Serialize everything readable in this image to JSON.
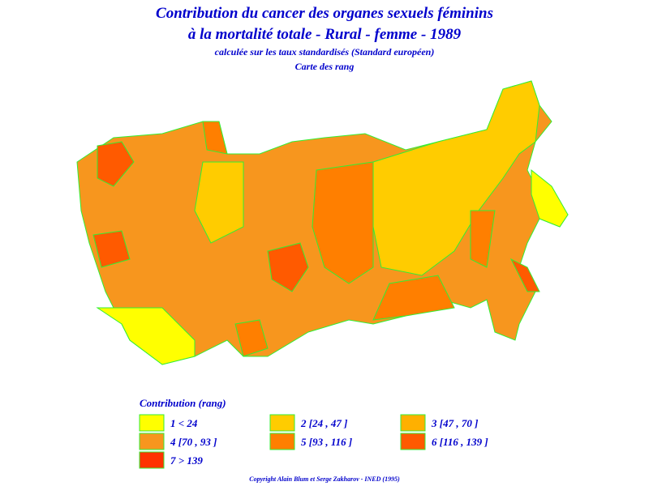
{
  "header": {
    "lines": [
      "Contribution du cancer des organes sexuels féminins",
      "à la mortalité totale - Rural - femme - 1989",
      "calculée sur les taux standardisés (Standard européen)",
      "Carte des rang"
    ]
  },
  "legend": {
    "title": "Contribution (rang)",
    "items": [
      {
        "label": "1 < 24",
        "color": "#ffff00"
      },
      {
        "label": "2 [24 , 47 ]",
        "color": "#ffcc00"
      },
      {
        "label": "3 [47 , 70 ]",
        "color": "#ffb000"
      },
      {
        "label": "4 [70 , 93 ]",
        "color": "#f7961e"
      },
      {
        "label": "5 [93 , 116 ]",
        "color": "#ff7f00"
      },
      {
        "label": "6 [116 , 139 ]",
        "color": "#ff5a00"
      },
      {
        "label": "7 > 139",
        "color": "#ff3300"
      }
    ]
  },
  "footer": {
    "copyright": "Copyright Alain Blum et Serge Zakharov - INED (1995)"
  }
}
